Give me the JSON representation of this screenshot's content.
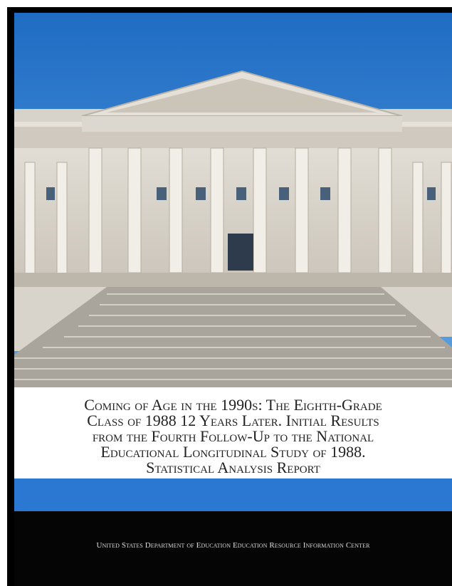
{
  "cover": {
    "title_lines": [
      "Coming of Age in the 1990s: The Eighth-Grade",
      "Class of 1988 12 Years Later. Initial Results",
      "from the Fourth Follow-Up to the National",
      "Educational Longitudinal Study of 1988.",
      "Statistical Analysis Report"
    ],
    "publisher": "United States Department of Education Education Resource Information Center"
  }
}
